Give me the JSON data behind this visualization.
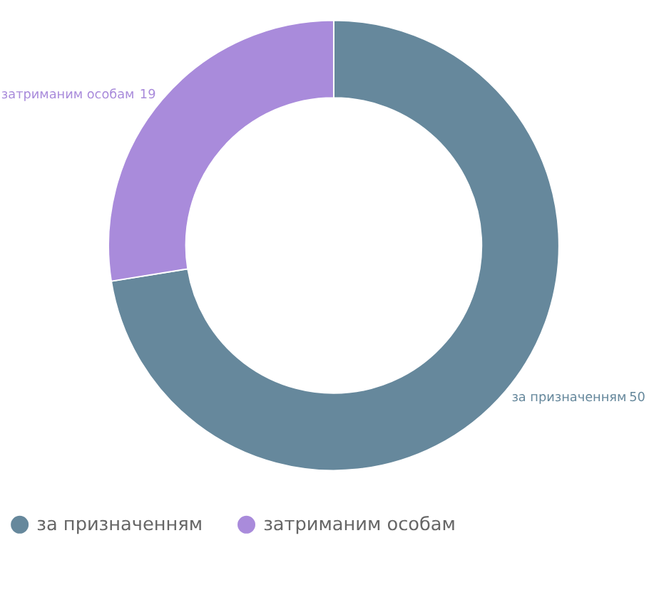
{
  "chart_data": {
    "type": "donut",
    "categories": [
      "за призначенням",
      "затриманим особам"
    ],
    "values": [
      50,
      19
    ],
    "colors": [
      "#66889c",
      "#a98bdb"
    ],
    "data_labels": true,
    "legend": "bottom"
  }
}
